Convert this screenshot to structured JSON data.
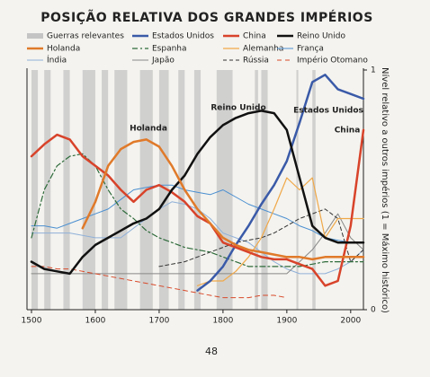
{
  "chart_data": {
    "type": "line",
    "title": "POSIÇÃO RELATIVA DOS GRANDES IMPÉRIOS",
    "y_axis_label": "Nível relativo a outros impérios (1 = Máximo histórico)",
    "page_number": "48",
    "xlim": [
      1500,
      2020
    ],
    "ylim": [
      0,
      1
    ],
    "xticks": [
      1500,
      1600,
      1700,
      1800,
      1900,
      2000
    ],
    "yticks": [
      0,
      1
    ],
    "war_periods": {
      "name": "Guerras relevantes",
      "color": "#c4c4c4",
      "ranges": [
        [
          1500,
          1510
        ],
        [
          1520,
          1530
        ],
        [
          1550,
          1560
        ],
        [
          1580,
          1600
        ],
        [
          1610,
          1620
        ],
        [
          1630,
          1650
        ],
        [
          1670,
          1690
        ],
        [
          1700,
          1715
        ],
        [
          1730,
          1740
        ],
        [
          1755,
          1765
        ],
        [
          1790,
          1815
        ],
        [
          1850,
          1855
        ],
        [
          1860,
          1870
        ],
        [
          1915,
          1918
        ],
        [
          1940,
          1945
        ]
      ]
    },
    "annotations": [
      "Holanda",
      "Reino Unido",
      "Estados Unidos",
      "China"
    ],
    "x": [
      1500,
      1520,
      1540,
      1560,
      1580,
      1600,
      1620,
      1640,
      1660,
      1680,
      1700,
      1720,
      1740,
      1760,
      1780,
      1800,
      1820,
      1840,
      1860,
      1880,
      1900,
      1920,
      1940,
      1960,
      1980,
      2000,
      2020
    ],
    "series": [
      {
        "name": "Estados Unidos",
        "color": "#3a5aa8",
        "width": 2.5,
        "values": [
          null,
          null,
          null,
          null,
          null,
          null,
          null,
          null,
          null,
          null,
          null,
          null,
          null,
          0.08,
          0.12,
          0.18,
          0.27,
          0.35,
          0.44,
          0.52,
          0.62,
          0.78,
          0.95,
          0.98,
          0.92,
          0.9,
          0.88
        ]
      },
      {
        "name": "China",
        "color": "#d8432a",
        "width": 2.5,
        "values": [
          0.64,
          0.69,
          0.73,
          0.71,
          0.64,
          0.6,
          0.56,
          0.5,
          0.45,
          0.5,
          0.52,
          0.49,
          0.45,
          0.39,
          0.36,
          0.28,
          0.26,
          0.24,
          0.22,
          0.21,
          0.21,
          0.19,
          0.17,
          0.1,
          0.12,
          0.35,
          0.75
        ]
      },
      {
        "name": "Reino Unido",
        "color": "#111111",
        "width": 2.5,
        "values": [
          0.2,
          0.17,
          0.16,
          0.15,
          0.22,
          0.27,
          0.3,
          0.33,
          0.36,
          0.38,
          0.42,
          0.5,
          0.56,
          0.65,
          0.72,
          0.77,
          0.8,
          0.82,
          0.83,
          0.82,
          0.75,
          0.55,
          0.35,
          0.3,
          0.28,
          0.28,
          0.28
        ]
      },
      {
        "name": "Holanda",
        "color": "#e07a2a",
        "width": 2.5,
        "values": [
          null,
          null,
          null,
          null,
          0.34,
          0.45,
          0.6,
          0.67,
          0.7,
          0.71,
          0.68,
          0.6,
          0.5,
          0.42,
          0.36,
          0.3,
          0.27,
          0.25,
          0.24,
          0.23,
          0.22,
          0.22,
          0.21,
          0.22,
          0.22,
          0.22,
          0.22
        ]
      },
      {
        "name": "Espanha",
        "color": "#2e6b3a",
        "width": 1.2,
        "dash": "6 3 2 3",
        "values": [
          0.3,
          0.5,
          0.6,
          0.64,
          0.65,
          0.6,
          0.5,
          0.42,
          0.38,
          0.33,
          0.3,
          0.28,
          0.26,
          0.25,
          0.24,
          0.22,
          0.2,
          0.18,
          0.18,
          0.18,
          0.18,
          0.18,
          0.19,
          0.2,
          0.2,
          0.2,
          0.2
        ]
      },
      {
        "name": "Alemanha",
        "color": "#f0a848",
        "width": 1.2,
        "values": [
          null,
          null,
          null,
          null,
          null,
          null,
          null,
          null,
          null,
          null,
          null,
          null,
          null,
          0.1,
          0.12,
          0.12,
          0.16,
          0.22,
          0.3,
          0.42,
          0.55,
          0.5,
          0.55,
          0.3,
          0.38,
          0.38,
          0.38
        ]
      },
      {
        "name": "França",
        "color": "#4a8fd0",
        "width": 1,
        "values": [
          0.35,
          0.35,
          0.34,
          0.36,
          0.38,
          0.4,
          0.42,
          0.46,
          0.5,
          0.51,
          0.52,
          0.52,
          0.5,
          0.49,
          0.48,
          0.5,
          0.47,
          0.44,
          0.42,
          0.4,
          0.38,
          0.35,
          0.33,
          0.3,
          0.29,
          0.28,
          0.28
        ]
      },
      {
        "name": "Índia",
        "color": "#8fb0d8",
        "width": 1,
        "values": [
          0.32,
          0.32,
          0.32,
          0.32,
          0.31,
          0.3,
          0.3,
          0.3,
          0.34,
          0.38,
          0.42,
          0.45,
          0.44,
          0.42,
          0.38,
          0.32,
          0.3,
          0.28,
          0.24,
          0.2,
          0.17,
          0.15,
          0.15,
          0.15,
          0.17,
          0.2,
          0.25
        ]
      },
      {
        "name": "Japão",
        "color": "#888888",
        "width": 1,
        "values": [
          0.15,
          0.15,
          0.15,
          0.15,
          0.15,
          0.15,
          0.15,
          0.15,
          0.15,
          0.15,
          0.15,
          0.15,
          0.15,
          0.15,
          0.15,
          0.15,
          0.15,
          0.15,
          0.15,
          0.15,
          0.15,
          0.2,
          0.25,
          0.32,
          0.4,
          0.3,
          0.25
        ]
      },
      {
        "name": "Rússia",
        "color": "#333333",
        "width": 1,
        "dash": "4 3",
        "values": [
          null,
          null,
          null,
          null,
          null,
          null,
          null,
          null,
          null,
          null,
          0.18,
          0.19,
          0.2,
          0.22,
          0.24,
          0.26,
          0.28,
          0.29,
          0.3,
          0.32,
          0.35,
          0.38,
          0.4,
          0.42,
          0.38,
          0.2,
          0.25
        ]
      },
      {
        "name": "Império Otomano",
        "color": "#d84a2a",
        "width": 1,
        "dash": "5 4",
        "values": [
          0.18,
          0.18,
          0.17,
          0.17,
          0.16,
          0.15,
          0.14,
          0.13,
          0.12,
          0.11,
          0.1,
          0.09,
          0.08,
          0.07,
          0.06,
          0.05,
          0.05,
          0.05,
          0.06,
          0.06,
          0.05,
          null,
          null,
          null,
          null,
          null,
          null
        ]
      }
    ]
  }
}
